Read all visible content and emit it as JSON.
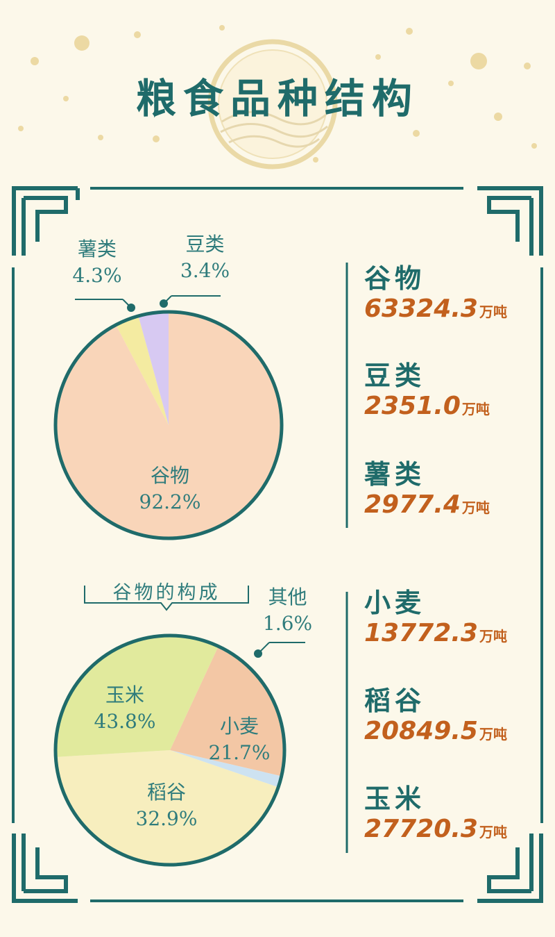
{
  "title": "粮食品种结构",
  "chart_data": [
    {
      "type": "pie",
      "categories": [
        "谷物",
        "豆类",
        "薯类"
      ],
      "values": [
        92.2,
        3.4,
        4.3
      ],
      "value_labels": [
        "92.2%",
        "3.4%",
        "4.3%"
      ],
      "colors": [
        "#f9d5b9",
        "#f4eba1",
        "#d7c9f2"
      ],
      "tonnage": [
        "63324.3",
        "2351.0",
        "2977.4"
      ]
    },
    {
      "type": "pie",
      "title": "谷物的构成",
      "categories": [
        "小麦",
        "其他",
        "玉米",
        "稻谷"
      ],
      "values": [
        21.7,
        1.6,
        43.8,
        32.9
      ],
      "value_labels": [
        "21.7%",
        "1.6%",
        "43.8%",
        "32.9%"
      ],
      "colors": [
        "#f3c7a5",
        "#cde2f1",
        "#f7eebe",
        "#e1ea9d"
      ],
      "tonnage": [
        "13772.3",
        "",
        "27720.3",
        "20849.5"
      ]
    }
  ],
  "unit": "万吨",
  "side_top": [
    {
      "name": "谷物",
      "value": "63324.3"
    },
    {
      "name": "豆类",
      "value": "2351.0"
    },
    {
      "name": "薯类",
      "value": "2977.4"
    }
  ],
  "side_bottom": [
    {
      "name": "小麦",
      "value": "13772.3"
    },
    {
      "name": "稻谷",
      "value": "20849.5"
    },
    {
      "name": "玉米",
      "value": "27720.3"
    }
  ],
  "colors": {
    "frame": "#1f6b6a",
    "accent": "#c2601d",
    "label": "#2f7c7c",
    "background": "#fcf8ea",
    "gold": "#e9d79c"
  }
}
